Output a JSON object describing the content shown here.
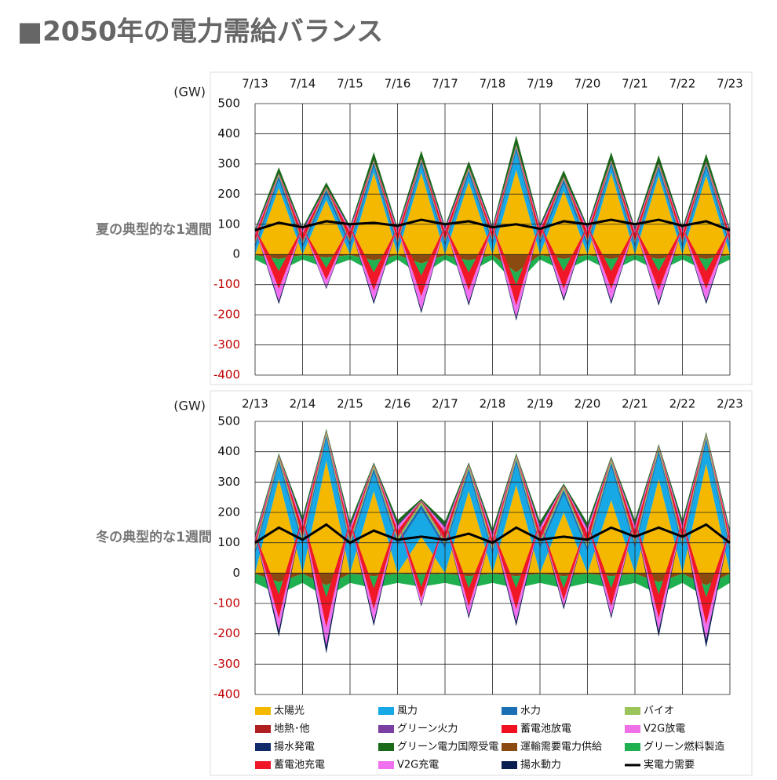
{
  "page_title": "■2050年の電力需給バランス",
  "chart_data": [
    {
      "type": "stacked-area",
      "label": "夏の典型的な1週間",
      "y_label": "(GW)",
      "x": [
        0,
        0.5,
        1,
        1.5,
        2,
        2.5,
        3,
        3.5,
        4,
        4.5,
        5,
        5.5,
        6,
        6.5,
        7,
        7.5,
        8,
        8.5,
        9,
        9.5,
        10
      ],
      "xlim": [
        0,
        10
      ],
      "xticks": [
        {
          "value": 0,
          "label": "7/13"
        },
        {
          "value": 1,
          "label": "7/14"
        },
        {
          "value": 2,
          "label": "7/15"
        },
        {
          "value": 3,
          "label": "7/16"
        },
        {
          "value": 4,
          "label": "7/17"
        },
        {
          "value": 5,
          "label": "7/18"
        },
        {
          "value": 6,
          "label": "7/19"
        },
        {
          "value": 7,
          "label": "7/20"
        },
        {
          "value": 8,
          "label": "7/21"
        },
        {
          "value": 9,
          "label": "7/22"
        },
        {
          "value": 10,
          "label": "7/23"
        }
      ],
      "ylim": [
        -400,
        500
      ],
      "yticks": [
        -400,
        -300,
        -200,
        -100,
        0,
        100,
        200,
        300,
        400,
        500
      ],
      "grid": true,
      "series": [
        {
          "name": "太陽光",
          "color": "#f5b800",
          "values": [
            0,
            220,
            0,
            180,
            0,
            270,
            0,
            270,
            0,
            240,
            0,
            280,
            0,
            210,
            0,
            270,
            0,
            260,
            0,
            260,
            0
          ]
        },
        {
          "name": "風力",
          "color": "#17a9e6",
          "values": [
            20,
            25,
            20,
            20,
            25,
            20,
            20,
            25,
            25,
            25,
            30,
            60,
            30,
            25,
            25,
            20,
            20,
            20,
            20,
            25,
            20
          ]
        },
        {
          "name": "水力",
          "color": "#1a6fb5",
          "values": [
            15,
            15,
            15,
            15,
            15,
            15,
            15,
            15,
            15,
            15,
            15,
            15,
            15,
            15,
            15,
            15,
            15,
            15,
            15,
            15,
            15
          ]
        },
        {
          "name": "バイオ",
          "color": "#9bc55a",
          "values": [
            5,
            5,
            5,
            5,
            5,
            5,
            5,
            5,
            5,
            5,
            5,
            5,
            5,
            5,
            5,
            5,
            5,
            5,
            5,
            5,
            5
          ]
        },
        {
          "name": "地熱･他",
          "color": "#b02020",
          "values": [
            3,
            3,
            3,
            3,
            3,
            3,
            3,
            3,
            3,
            3,
            3,
            3,
            3,
            3,
            3,
            3,
            3,
            3,
            3,
            3,
            3
          ]
        },
        {
          "name": "グリーン火力",
          "color": "#7a3fa0",
          "values": [
            1,
            1,
            1,
            1,
            1,
            1,
            1,
            1,
            1,
            1,
            1,
            1,
            1,
            1,
            1,
            1,
            1,
            1,
            1,
            1,
            1
          ]
        },
        {
          "name": "蓄電池放電",
          "color": "#f01020",
          "values": [
            20,
            0,
            25,
            0,
            25,
            0,
            25,
            0,
            25,
            0,
            20,
            0,
            25,
            0,
            25,
            0,
            25,
            0,
            25,
            0,
            20
          ]
        },
        {
          "name": "V2G放電",
          "color": "#f070e8",
          "values": [
            10,
            0,
            10,
            0,
            10,
            0,
            10,
            0,
            10,
            0,
            10,
            0,
            10,
            0,
            10,
            0,
            10,
            0,
            10,
            0,
            10
          ]
        },
        {
          "name": "揚水発電",
          "color": "#102a6a",
          "values": [
            5,
            0,
            5,
            0,
            5,
            0,
            5,
            0,
            5,
            0,
            5,
            0,
            5,
            0,
            5,
            0,
            5,
            0,
            5,
            0,
            5
          ]
        },
        {
          "name": "グリーン電力国際受電",
          "color": "#1a6a1a",
          "values": [
            5,
            20,
            5,
            15,
            5,
            25,
            5,
            25,
            5,
            20,
            5,
            30,
            5,
            20,
            5,
            25,
            5,
            25,
            5,
            25,
            5
          ]
        },
        {
          "name": "運輸需要電力供給",
          "color": "#8a4a10",
          "values": [
            -2,
            -15,
            -2,
            -10,
            -2,
            -20,
            -2,
            -30,
            -2,
            -20,
            -2,
            -60,
            -2,
            -15,
            -2,
            -15,
            -2,
            -15,
            -2,
            -15,
            -2
          ]
        },
        {
          "name": "グリーン燃料製造",
          "color": "#20b050",
          "values": [
            -15,
            -40,
            -15,
            -35,
            -15,
            -40,
            -15,
            -40,
            -15,
            -40,
            -15,
            -40,
            -15,
            -40,
            -15,
            -40,
            -15,
            -40,
            -15,
            -40,
            -15
          ]
        },
        {
          "name": "蓄電池充電",
          "color": "#f01828",
          "values": [
            0,
            -60,
            0,
            -40,
            0,
            -60,
            0,
            -70,
            0,
            -60,
            0,
            -70,
            0,
            -60,
            0,
            -60,
            0,
            -65,
            0,
            -60,
            0
          ]
        },
        {
          "name": "V2G充電",
          "color": "#f070f0",
          "values": [
            0,
            -40,
            0,
            -25,
            0,
            -35,
            0,
            -45,
            0,
            -40,
            0,
            -40,
            0,
            -30,
            0,
            -40,
            0,
            -40,
            0,
            -40,
            0
          ]
        },
        {
          "name": "揚水動力",
          "color": "#0a1f50",
          "values": [
            0,
            -10,
            0,
            -5,
            0,
            -10,
            0,
            -10,
            0,
            -10,
            0,
            -10,
            0,
            -10,
            0,
            -10,
            0,
            -10,
            0,
            -10,
            0
          ]
        },
        {
          "name": "実電力需要",
          "color": "#000000",
          "type": "line",
          "values": [
            80,
            105,
            90,
            110,
            100,
            105,
            95,
            115,
            100,
            110,
            90,
            100,
            85,
            110,
            100,
            115,
            100,
            115,
            95,
            110,
            80
          ]
        }
      ]
    },
    {
      "type": "stacked-area",
      "label": "冬の典型的な1週間",
      "y_label": "(GW)",
      "x": [
        0,
        0.5,
        1,
        1.5,
        2,
        2.5,
        3,
        3.5,
        4,
        4.5,
        5,
        5.5,
        6,
        6.5,
        7,
        7.5,
        8,
        8.5,
        9,
        9.5,
        10
      ],
      "xlim": [
        0,
        10
      ],
      "xticks": [
        {
          "value": 0,
          "label": "2/13"
        },
        {
          "value": 1,
          "label": "2/14"
        },
        {
          "value": 2,
          "label": "2/15"
        },
        {
          "value": 3,
          "label": "2/16"
        },
        {
          "value": 4,
          "label": "2/17"
        },
        {
          "value": 5,
          "label": "2/18"
        },
        {
          "value": 6,
          "label": "2/19"
        },
        {
          "value": 7,
          "label": "2/20"
        },
        {
          "value": 8,
          "label": "2/21"
        },
        {
          "value": 9,
          "label": "2/22"
        },
        {
          "value": 10,
          "label": "2/23"
        }
      ],
      "ylim": [
        -400,
        500
      ],
      "yticks": [
        -400,
        -300,
        -200,
        -100,
        0,
        100,
        200,
        300,
        400,
        500
      ],
      "grid": true,
      "series": [
        {
          "name": "太陽光",
          "color": "#f5b800",
          "values": [
            0,
            310,
            0,
            370,
            0,
            270,
            0,
            120,
            0,
            270,
            0,
            290,
            0,
            200,
            0,
            240,
            0,
            310,
            0,
            360,
            0
          ]
        },
        {
          "name": "風力",
          "color": "#17a9e6",
          "values": [
            60,
            50,
            90,
            70,
            80,
            60,
            90,
            90,
            80,
            60,
            60,
            70,
            80,
            60,
            70,
            110,
            80,
            80,
            80,
            70,
            70
          ]
        },
        {
          "name": "水力",
          "color": "#1a6fb5",
          "values": [
            15,
            15,
            15,
            15,
            15,
            15,
            15,
            15,
            15,
            15,
            15,
            15,
            15,
            15,
            15,
            15,
            15,
            15,
            15,
            15,
            15
          ]
        },
        {
          "name": "バイオ",
          "color": "#9bc55a",
          "values": [
            10,
            10,
            10,
            10,
            10,
            10,
            10,
            10,
            10,
            10,
            10,
            10,
            10,
            10,
            10,
            10,
            10,
            10,
            10,
            10,
            10
          ]
        },
        {
          "name": "地熱･他",
          "color": "#b02020",
          "values": [
            3,
            3,
            3,
            3,
            3,
            3,
            3,
            3,
            3,
            3,
            3,
            3,
            3,
            3,
            3,
            3,
            3,
            3,
            3,
            3,
            3
          ]
        },
        {
          "name": "グリーン火力",
          "color": "#7a3fa0",
          "values": [
            2,
            2,
            2,
            2,
            2,
            2,
            2,
            2,
            2,
            2,
            2,
            2,
            2,
            2,
            2,
            2,
            2,
            2,
            2,
            2,
            2
          ]
        },
        {
          "name": "蓄電池放電",
          "color": "#f01020",
          "values": [
            15,
            0,
            30,
            0,
            25,
            0,
            20,
            0,
            25,
            0,
            20,
            0,
            25,
            0,
            30,
            0,
            30,
            0,
            30,
            0,
            20
          ]
        },
        {
          "name": "V2G放電",
          "color": "#f070e8",
          "values": [
            10,
            0,
            15,
            0,
            15,
            0,
            15,
            0,
            15,
            0,
            15,
            0,
            15,
            0,
            15,
            0,
            15,
            0,
            15,
            0,
            10
          ]
        },
        {
          "name": "揚水発電",
          "color": "#102a6a",
          "values": [
            5,
            0,
            5,
            0,
            5,
            0,
            5,
            0,
            5,
            0,
            5,
            0,
            5,
            0,
            5,
            0,
            5,
            0,
            5,
            0,
            5
          ]
        },
        {
          "name": "グリーン電力国際受電",
          "color": "#1a6a1a",
          "values": [
            10,
            5,
            15,
            5,
            15,
            5,
            15,
            5,
            15,
            5,
            15,
            5,
            15,
            5,
            15,
            5,
            15,
            5,
            15,
            5,
            10
          ]
        },
        {
          "name": "運輸需要電力供給",
          "color": "#8a4a10",
          "values": [
            -2,
            -30,
            -2,
            -40,
            -2,
            -10,
            -2,
            -5,
            -2,
            -10,
            -2,
            -10,
            -2,
            -10,
            -2,
            -10,
            -2,
            -30,
            -2,
            -40,
            -2
          ]
        },
        {
          "name": "グリーン燃料製造",
          "color": "#20b050",
          "values": [
            -30,
            -40,
            -30,
            -40,
            -30,
            -40,
            -30,
            -40,
            -30,
            -40,
            -30,
            -40,
            -30,
            -40,
            -30,
            -40,
            -30,
            -40,
            -30,
            -40,
            -30
          ]
        },
        {
          "name": "蓄電池充電",
          "color": "#f01828",
          "values": [
            0,
            -80,
            0,
            -100,
            0,
            -70,
            0,
            -40,
            0,
            -60,
            0,
            -70,
            0,
            -40,
            0,
            -60,
            0,
            -80,
            0,
            -90,
            0
          ]
        },
        {
          "name": "V2G充電",
          "color": "#f070f0",
          "values": [
            0,
            -40,
            0,
            -60,
            0,
            -40,
            0,
            -20,
            0,
            -30,
            0,
            -40,
            0,
            -20,
            0,
            -30,
            0,
            -40,
            0,
            -50,
            0
          ]
        },
        {
          "name": "揚水動力",
          "color": "#0a1f50",
          "values": [
            0,
            -20,
            0,
            -25,
            0,
            -15,
            0,
            -5,
            0,
            -10,
            0,
            -15,
            0,
            -10,
            0,
            -10,
            0,
            -20,
            0,
            -25,
            0
          ]
        },
        {
          "name": "実電力需要",
          "color": "#000000",
          "type": "line",
          "values": [
            100,
            150,
            110,
            160,
            100,
            140,
            110,
            120,
            110,
            130,
            100,
            150,
            110,
            120,
            110,
            150,
            120,
            150,
            120,
            160,
            100
          ]
        }
      ]
    }
  ]
}
